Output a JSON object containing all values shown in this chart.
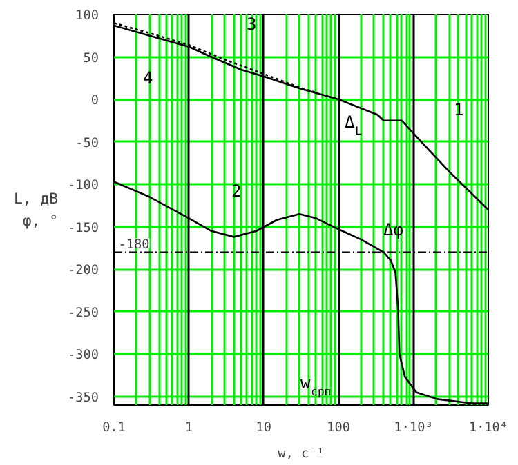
{
  "chart_data": {
    "type": "line",
    "xlabel": "w, c⁻¹",
    "ylabel": "L, дВ\nφ, °",
    "log": "x",
    "grid": true,
    "xlim": [
      0.1,
      10000
    ],
    "ylim": [
      -360,
      100
    ],
    "xticks": [
      0.1,
      1,
      10,
      100,
      {
        "value": 1000,
        "label": "1·10³"
      },
      {
        "value": 10000,
        "label": "1·10⁴"
      }
    ],
    "yticks": [
      -350,
      -300,
      -250,
      -200,
      -150,
      -100,
      -50,
      0,
      50,
      100
    ],
    "series": [
      {
        "color": "#000000",
        "line_style": "solid",
        "x": [
          0.1,
          0.3,
          1,
          2,
          5,
          10,
          30,
          100,
          330,
          400,
          700,
          1000,
          3000,
          10000
        ],
        "values": [
          87,
          75,
          62,
          50,
          35,
          27,
          13,
          0,
          -18,
          -25,
          -25,
          -40,
          -85,
          -130
        ]
      },
      {
        "color": "#000000",
        "line_style": "dotted",
        "x": [
          0.1,
          0.3,
          1,
          3,
          10,
          30,
          50
        ],
        "values": [
          90,
          78,
          64,
          47,
          30,
          14,
          8
        ]
      },
      {
        "color": "#000000",
        "line_style": "solid",
        "x": [
          0.1,
          0.3,
          1,
          2,
          4,
          8,
          15,
          30,
          50,
          100,
          200,
          400,
          500,
          575,
          625,
          650,
          770,
          1090,
          2060,
          5980,
          10000
        ],
        "values": [
          -97,
          -115,
          -140,
          -155,
          -162,
          -155,
          -142,
          -135,
          -140,
          -153,
          -165,
          -180,
          -190,
          -204,
          -248,
          -300,
          -327,
          -345,
          -353,
          -358,
          -358
        ]
      }
    ],
    "ref_lines": [
      {
        "axis": "y",
        "value": -180,
        "label": "-180",
        "line_style": "dashdot"
      }
    ],
    "annotations": [
      "1",
      "2",
      "3",
      "4",
      "Δ$_{L}$",
      "Δφ",
      "w$_{срп}$"
    ]
  }
}
